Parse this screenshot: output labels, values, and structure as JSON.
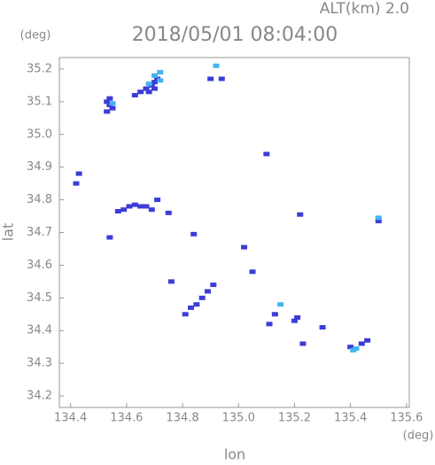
{
  "chart_data": {
    "type": "scatter",
    "title": "2018/05/01 08:04:00",
    "subtitle": "ALT(km) 2.0",
    "x_label": "lon",
    "y_label": "lat",
    "x_unit": "(deg)",
    "y_unit": "(deg)",
    "xlim": [
      134.36,
      135.61
    ],
    "ylim": [
      34.165,
      35.235
    ],
    "xticks": [
      134.4,
      134.6,
      134.8,
      {
        "value": 135,
        "label": "135.0"
      },
      135.2,
      135.4,
      135.6
    ],
    "yticks": [
      34.2,
      34.3,
      34.4,
      34.5,
      34.6,
      34.7,
      34.8,
      34.9,
      {
        "value": 35,
        "label": "35.0"
      },
      35.1,
      35.2
    ],
    "grid": false,
    "series": [
      {
        "color": "#3c3cd8",
        "x": [
          134.53,
          134.54,
          134.55,
          134.53,
          134.54,
          134.63,
          134.65,
          134.67,
          134.69,
          134.7,
          134.71,
          134.68,
          134.7,
          134.9,
          134.94,
          134.42,
          134.43,
          135.1,
          134.57,
          134.59,
          134.61,
          134.63,
          134.65,
          134.67,
          134.69,
          134.71,
          134.75,
          134.54,
          134.84,
          135.22,
          135.5,
          135.02,
          135.05,
          134.76,
          134.81,
          134.83,
          134.85,
          134.87,
          134.89,
          134.91,
          135.13,
          135.11,
          135.21,
          135.2,
          135.3,
          135.23,
          135.4,
          135.44,
          135.46
        ],
        "y": [
          35.1,
          35.09,
          35.08,
          35.07,
          35.11,
          35.12,
          35.13,
          35.14,
          35.15,
          35.16,
          35.17,
          35.13,
          35.14,
          35.17,
          35.17,
          34.85,
          34.88,
          34.94,
          34.765,
          34.77,
          34.78,
          34.785,
          34.78,
          34.78,
          34.77,
          34.8,
          34.76,
          34.685,
          34.695,
          34.755,
          34.735,
          34.655,
          34.58,
          34.55,
          34.45,
          34.47,
          34.48,
          34.5,
          34.52,
          34.54,
          34.45,
          34.42,
          34.44,
          34.43,
          34.41,
          34.36,
          34.35,
          34.36,
          34.37
        ]
      },
      {
        "color": "#44b4f0",
        "x": [
          134.55,
          134.72,
          134.7,
          134.72,
          134.68,
          134.92,
          135.5,
          135.15,
          135.41,
          135.42
        ],
        "y": [
          35.095,
          35.19,
          35.18,
          35.165,
          35.155,
          35.21,
          34.745,
          34.48,
          34.34,
          34.345
        ]
      }
    ]
  }
}
